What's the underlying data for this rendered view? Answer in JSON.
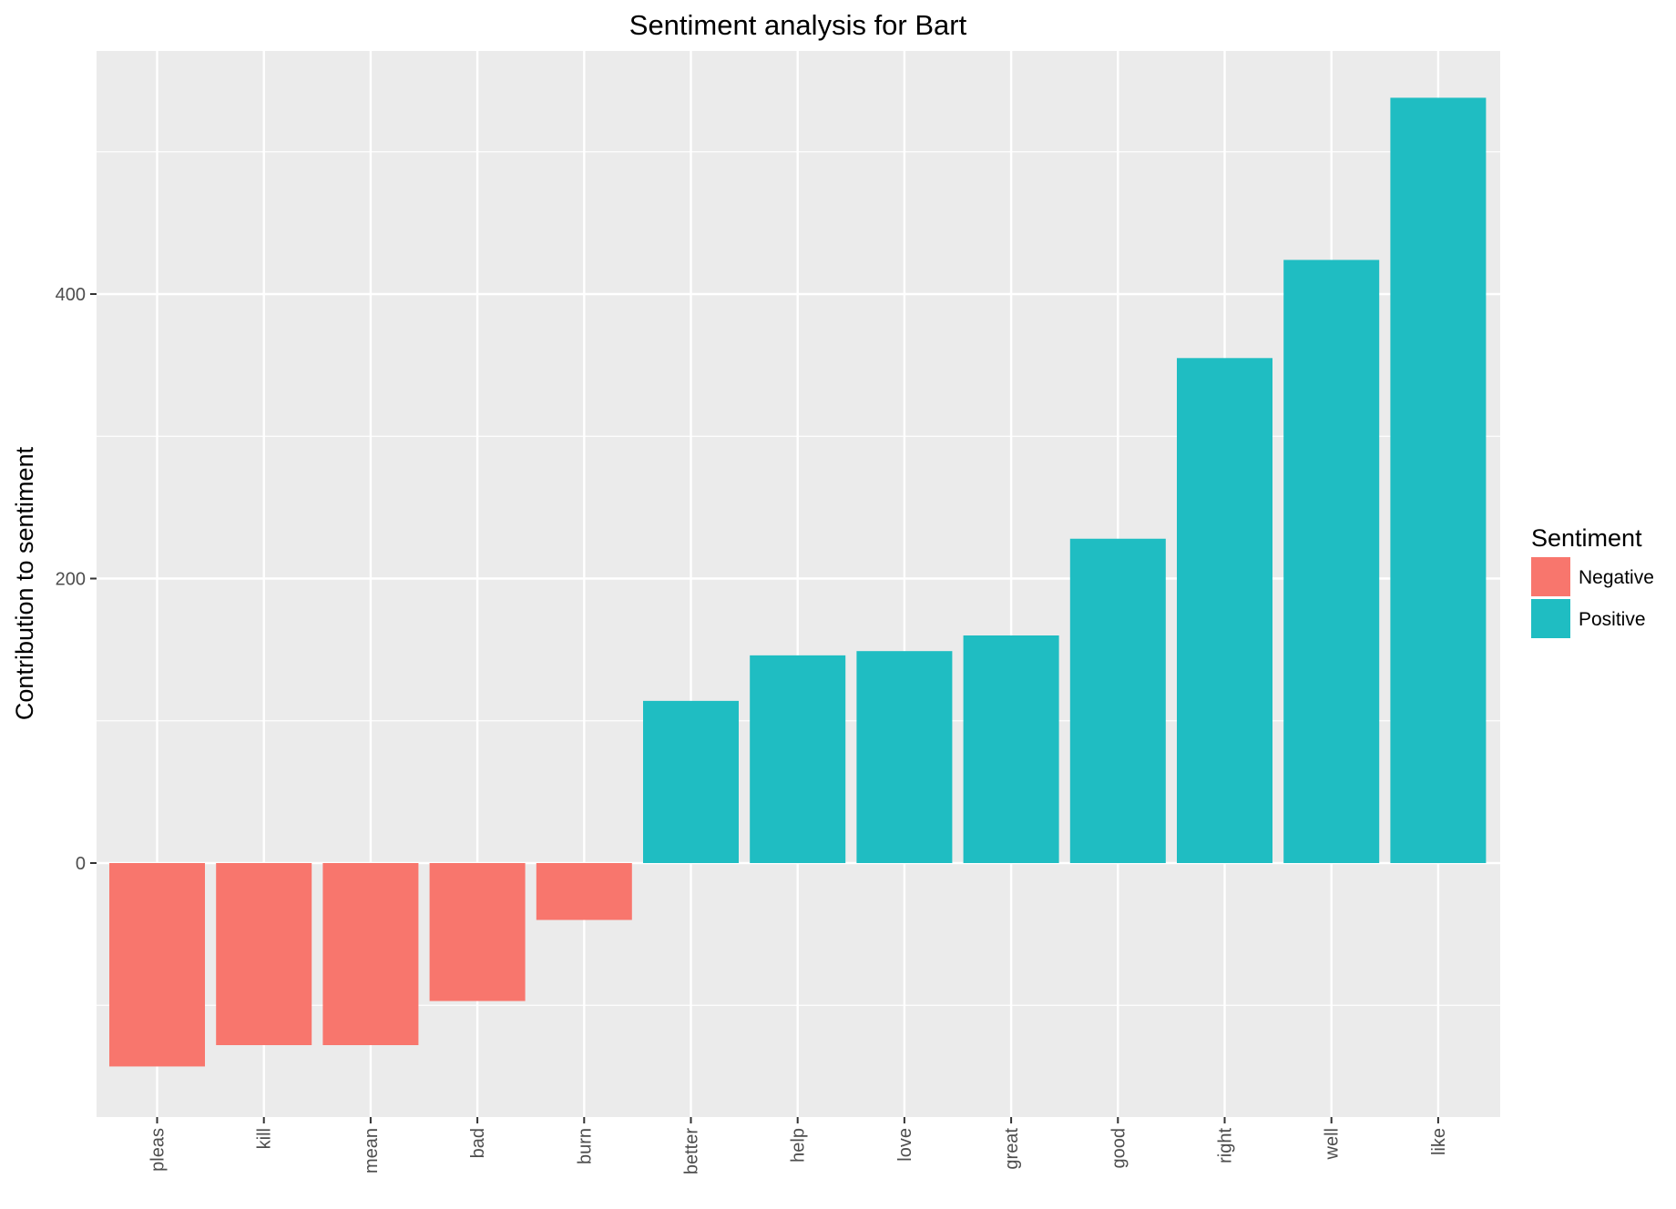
{
  "chart_data": {
    "type": "bar",
    "title": "Sentiment analysis for Bart",
    "xlabel": "",
    "ylabel": "Contribution to sentiment",
    "ylim": [
      -176,
      540
    ],
    "yticks": [
      0,
      200,
      400
    ],
    "grid": true,
    "categories": [
      "pleas",
      "kill",
      "mean",
      "bad",
      "burn",
      "better",
      "help",
      "love",
      "great",
      "good",
      "right",
      "well",
      "like"
    ],
    "values": [
      -143,
      -128,
      -128,
      -97,
      -40,
      114,
      146,
      149,
      160,
      228,
      355,
      424,
      538
    ],
    "sentiment": [
      "Negative",
      "Negative",
      "Negative",
      "Negative",
      "Negative",
      "Positive",
      "Positive",
      "Positive",
      "Positive",
      "Positive",
      "Positive",
      "Positive",
      "Positive"
    ],
    "legend": {
      "title": "Sentiment",
      "placement": "right",
      "entries": [
        {
          "label": "Negative",
          "color": "#F8766D"
        },
        {
          "label": "Positive",
          "color": "#00BFC4"
        }
      ]
    },
    "colors": {
      "Negative": "#F8766D",
      "Positive": "#1FBDC2",
      "panel": "#EBEBEB",
      "grid": "#FFFFFF"
    }
  }
}
